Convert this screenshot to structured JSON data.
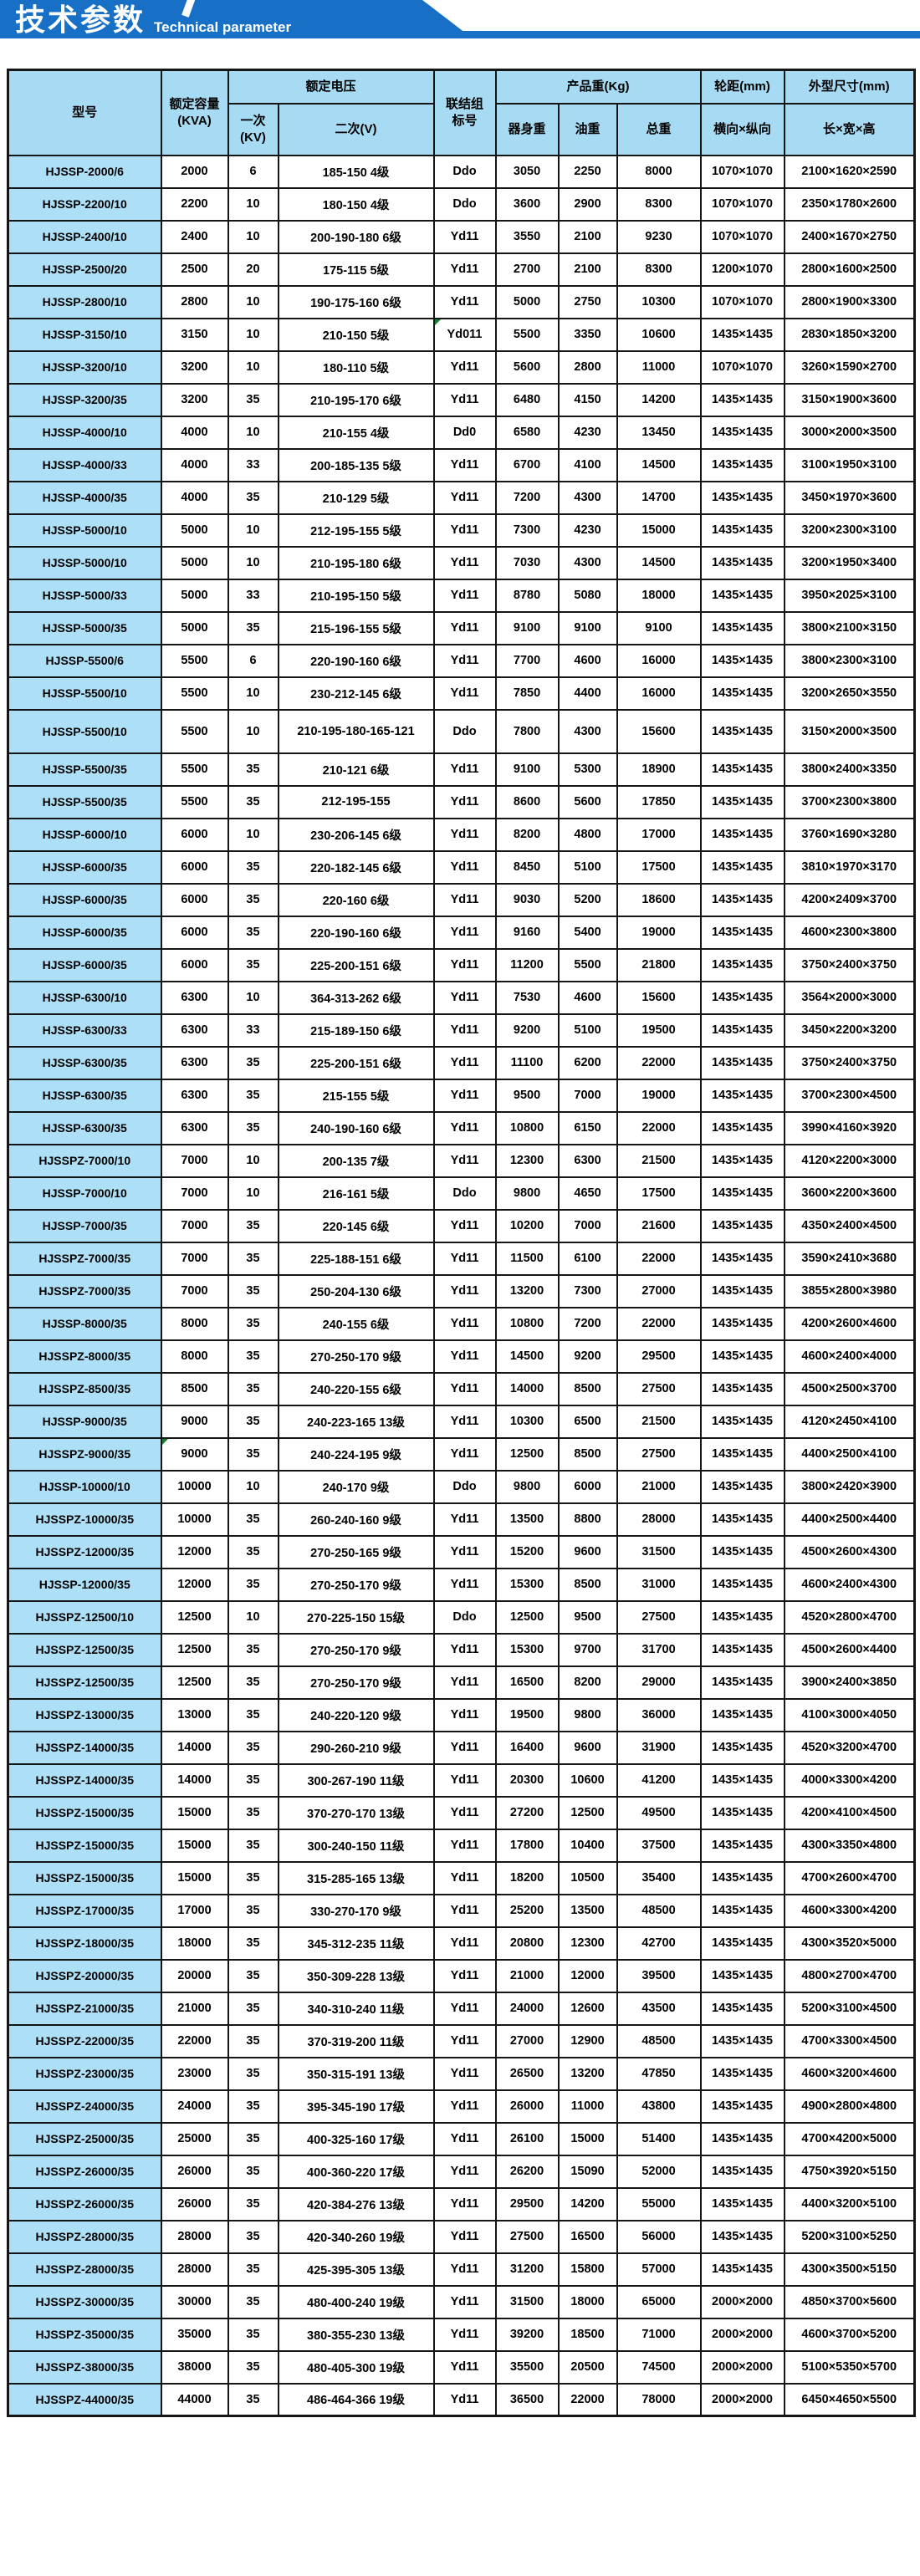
{
  "banner": {
    "title_zh": "技术参数",
    "title_en": "Technical parameter"
  },
  "colors": {
    "banner_blue": "#1770c5",
    "header_bg": "#a7dbf3",
    "model_bg": "#ade0f7",
    "border": "#151515",
    "corner_green": "#1e7d32"
  },
  "table": {
    "headers": {
      "model": "型号",
      "capacity_line1": "额定容量",
      "capacity_line2": "(KVA)",
      "voltage_group": "额定电压",
      "primary_line1": "一次",
      "primary_line2": "(KV)",
      "secondary": "二次(V)",
      "connection_line1": "联结组",
      "connection_line2": "标号",
      "weight_group": "产品重(Kg)",
      "body_weight": "器身重",
      "oil_weight": "油重",
      "total_weight": "总重",
      "wheelbase_group": "轮距(mm)",
      "wheelbase": "横向×纵向",
      "dimensions_group": "外型尺寸(mm)",
      "dimensions": "长×宽×高"
    },
    "col_keys": [
      "model",
      "capacity",
      "primary",
      "secondary",
      "connection",
      "body-weight",
      "oil-weight",
      "total-weight",
      "wheelbase",
      "dimensions"
    ],
    "corner_marks": [
      {
        "row": 6,
        "col": 4
      },
      {
        "row": 40,
        "col": 1
      }
    ],
    "rows": [
      [
        "HJSSP-2000/6",
        "2000",
        "6",
        "185-150 4级",
        "Ddo",
        "3050",
        "2250",
        "8000",
        "1070×1070",
        "2100×1620×2590"
      ],
      [
        "HJSSP-2200/10",
        "2200",
        "10",
        "180-150 4级",
        "Ddo",
        "3600",
        "2900",
        "8300",
        "1070×1070",
        "2350×1780×2600"
      ],
      [
        "HJSSP-2400/10",
        "2400",
        "10",
        "200-190-180 6级",
        "Yd11",
        "3550",
        "2100",
        "9230",
        "1070×1070",
        "2400×1670×2750"
      ],
      [
        "HJSSP-2500/20",
        "2500",
        "20",
        "175-115 5级",
        "Yd11",
        "2700",
        "2100",
        "8300",
        "1200×1070",
        "2800×1600×2500"
      ],
      [
        "HJSSP-2800/10",
        "2800",
        "10",
        "190-175-160 6级",
        "Yd11",
        "5000",
        "2750",
        "10300",
        "1070×1070",
        "2800×1900×3300"
      ],
      [
        "HJSSP-3150/10",
        "3150",
        "10",
        "210-150 5级",
        "Yd011",
        "5500",
        "3350",
        "10600",
        "1435×1435",
        "2830×1850×3200"
      ],
      [
        "HJSSP-3200/10",
        "3200",
        "10",
        "180-110 5级",
        "Yd11",
        "5600",
        "2800",
        "11000",
        "1070×1070",
        "3260×1590×2700"
      ],
      [
        "HJSSP-3200/35",
        "3200",
        "35",
        "210-195-170 6级",
        "Yd11",
        "6480",
        "4150",
        "14200",
        "1435×1435",
        "3150×1900×3600"
      ],
      [
        "HJSSP-4000/10",
        "4000",
        "10",
        "210-155 4级",
        "Dd0",
        "6580",
        "4230",
        "13450",
        "1435×1435",
        "3000×2000×3500"
      ],
      [
        "HJSSP-4000/33",
        "4000",
        "33",
        "200-185-135 5级",
        "Yd11",
        "6700",
        "4100",
        "14500",
        "1435×1435",
        "3100×1950×3100"
      ],
      [
        "HJSSP-4000/35",
        "4000",
        "35",
        "210-129 5级",
        "Yd11",
        "7200",
        "4300",
        "14700",
        "1435×1435",
        "3450×1970×3600"
      ],
      [
        "HJSSP-5000/10",
        "5000",
        "10",
        "212-195-155 5级",
        "Yd11",
        "7300",
        "4230",
        "15000",
        "1435×1435",
        "3200×2300×3100"
      ],
      [
        "HJSSP-5000/10",
        "5000",
        "10",
        "210-195-180 6级",
        "Yd11",
        "7030",
        "4300",
        "14500",
        "1435×1435",
        "3200×1950×3400"
      ],
      [
        "HJSSP-5000/33",
        "5000",
        "33",
        "210-195-150 5级",
        "Yd11",
        "8780",
        "5080",
        "18000",
        "1435×1435",
        "3950×2025×3100"
      ],
      [
        "HJSSP-5000/35",
        "5000",
        "35",
        "215-196-155 5级",
        "Yd11",
        "9100",
        "9100",
        "9100",
        "1435×1435",
        "3800×2100×3150"
      ],
      [
        "HJSSP-5500/6",
        "5500",
        "6",
        "220-190-160 6级",
        "Yd11",
        "7700",
        "4600",
        "16000",
        "1435×1435",
        "3800×2300×3100"
      ],
      [
        "HJSSP-5500/10",
        "5500",
        "10",
        "230-212-145 6级",
        "Yd11",
        "7850",
        "4400",
        "16000",
        "1435×1435",
        "3200×2650×3550"
      ],
      [
        "HJSSP-5500/10",
        "5500",
        "10",
        "210-195-180-165-121",
        "Ddo",
        "7800",
        "4300",
        "15600",
        "1435×1435",
        "3150×2000×3500"
      ],
      [
        "HJSSP-5500/35",
        "5500",
        "35",
        "210-121 6级",
        "Yd11",
        "9100",
        "5300",
        "18900",
        "1435×1435",
        "3800×2400×3350"
      ],
      [
        "HJSSP-5500/35",
        "5500",
        "35",
        "212-195-155",
        "Yd11",
        "8600",
        "5600",
        "17850",
        "1435×1435",
        "3700×2300×3800"
      ],
      [
        "HJSSP-6000/10",
        "6000",
        "10",
        "230-206-145 6级",
        "Yd11",
        "8200",
        "4800",
        "17000",
        "1435×1435",
        "3760×1690×3280"
      ],
      [
        "HJSSP-6000/35",
        "6000",
        "35",
        "220-182-145 6级",
        "Yd11",
        "8450",
        "5100",
        "17500",
        "1435×1435",
        "3810×1970×3170"
      ],
      [
        "HJSSP-6000/35",
        "6000",
        "35",
        "220-160 6级",
        "Yd11",
        "9030",
        "5200",
        "18600",
        "1435×1435",
        "4200×2409×3700"
      ],
      [
        "HJSSP-6000/35",
        "6000",
        "35",
        "220-190-160 6级",
        "Yd11",
        "9160",
        "5400",
        "19000",
        "1435×1435",
        "4600×2300×3800"
      ],
      [
        "HJSSP-6000/35",
        "6000",
        "35",
        "225-200-151 6级",
        "Yd11",
        "11200",
        "5500",
        "21800",
        "1435×1435",
        "3750×2400×3750"
      ],
      [
        "HJSSP-6300/10",
        "6300",
        "10",
        "364-313-262 6级",
        "Yd11",
        "7530",
        "4600",
        "15600",
        "1435×1435",
        "3564×2000×3000"
      ],
      [
        "HJSSP-6300/33",
        "6300",
        "33",
        "215-189-150 6级",
        "Yd11",
        "9200",
        "5100",
        "19500",
        "1435×1435",
        "3450×2200×3200"
      ],
      [
        "HJSSP-6300/35",
        "6300",
        "35",
        "225-200-151 6级",
        "Yd11",
        "11100",
        "6200",
        "22000",
        "1435×1435",
        "3750×2400×3750"
      ],
      [
        "HJSSP-6300/35",
        "6300",
        "35",
        "215-155 5级",
        "Yd11",
        "9500",
        "7000",
        "19000",
        "1435×1435",
        "3700×2300×4500"
      ],
      [
        "HJSSP-6300/35",
        "6300",
        "35",
        "240-190-160 6级",
        "Yd11",
        "10800",
        "6150",
        "22000",
        "1435×1435",
        "3990×4160×3920"
      ],
      [
        "HJSSPZ-7000/10",
        "7000",
        "10",
        "200-135 7级",
        "Yd11",
        "12300",
        "6300",
        "21500",
        "1435×1435",
        "4120×2200×3000"
      ],
      [
        "HJSSP-7000/10",
        "7000",
        "10",
        "216-161 5级",
        "Ddo",
        "9800",
        "4650",
        "17500",
        "1435×1435",
        "3600×2200×3600"
      ],
      [
        "HJSSP-7000/35",
        "7000",
        "35",
        "220-145 6级",
        "Yd11",
        "10200",
        "7000",
        "21600",
        "1435×1435",
        "4350×2400×4500"
      ],
      [
        "HJSSPZ-7000/35",
        "7000",
        "35",
        "225-188-151 6级",
        "Yd11",
        "11500",
        "6100",
        "22000",
        "1435×1435",
        "3590×2410×3680"
      ],
      [
        "HJSSPZ-7000/35",
        "7000",
        "35",
        "250-204-130 6级",
        "Yd11",
        "13200",
        "7300",
        "27000",
        "1435×1435",
        "3855×2800×3980"
      ],
      [
        "HJSSP-8000/35",
        "8000",
        "35",
        "240-155 6级",
        "Yd11",
        "10800",
        "7200",
        "22000",
        "1435×1435",
        "4200×2600×4600"
      ],
      [
        "HJSSPZ-8000/35",
        "8000",
        "35",
        "270-250-170 9级",
        "Yd11",
        "14500",
        "9200",
        "29500",
        "1435×1435",
        "4600×2400×4000"
      ],
      [
        "HJSSPZ-8500/35",
        "8500",
        "35",
        "240-220-155 6级",
        "Yd11",
        "14000",
        "8500",
        "27500",
        "1435×1435",
        "4500×2500×3700"
      ],
      [
        "HJSSP-9000/35",
        "9000",
        "35",
        "240-223-165 13级",
        "Yd11",
        "10300",
        "6500",
        "21500",
        "1435×1435",
        "4120×2450×4100"
      ],
      [
        "HJSSPZ-9000/35",
        "9000",
        "35",
        "240-224-195 9级",
        "Yd11",
        "12500",
        "8500",
        "27500",
        "1435×1435",
        "4400×2500×4100"
      ],
      [
        "HJSSP-10000/10",
        "10000",
        "10",
        "240-170 9级",
        "Ddo",
        "9800",
        "6000",
        "21000",
        "1435×1435",
        "3800×2420×3900"
      ],
      [
        "HJSSPZ-10000/35",
        "10000",
        "35",
        "260-240-160 9级",
        "Yd11",
        "13500",
        "8800",
        "28000",
        "1435×1435",
        "4400×2500×4400"
      ],
      [
        "HJSSPZ-12000/35",
        "12000",
        "35",
        "270-250-165 9级",
        "Yd11",
        "15200",
        "9600",
        "31500",
        "1435×1435",
        "4500×2600×4300"
      ],
      [
        "HJSSP-12000/35",
        "12000",
        "35",
        "270-250-170 9级",
        "Yd11",
        "15300",
        "8500",
        "31000",
        "1435×1435",
        "4600×2400×4300"
      ],
      [
        "HJSSPZ-12500/10",
        "12500",
        "10",
        "270-225-150 15级",
        "Ddo",
        "12500",
        "9500",
        "27500",
        "1435×1435",
        "4520×2800×4700"
      ],
      [
        "HJSSPZ-12500/35",
        "12500",
        "35",
        "270-250-170 9级",
        "Yd11",
        "15300",
        "9700",
        "31700",
        "1435×1435",
        "4500×2600×4400"
      ],
      [
        "HJSSPZ-12500/35",
        "12500",
        "35",
        "270-250-170 9级",
        "Yd11",
        "16500",
        "8200",
        "29000",
        "1435×1435",
        "3900×2400×3850"
      ],
      [
        "HJSSPZ-13000/35",
        "13000",
        "35",
        "240-220-120 9级",
        "Yd11",
        "19500",
        "9800",
        "36000",
        "1435×1435",
        "4100×3000×4050"
      ],
      [
        "HJSSPZ-14000/35",
        "14000",
        "35",
        "290-260-210 9级",
        "Yd11",
        "16400",
        "9600",
        "31900",
        "1435×1435",
        "4520×3200×4700"
      ],
      [
        "HJSSPZ-14000/35",
        "14000",
        "35",
        "300-267-190 11级",
        "Yd11",
        "20300",
        "10600",
        "41200",
        "1435×1435",
        "4000×3300×4200"
      ],
      [
        "HJSSPZ-15000/35",
        "15000",
        "35",
        "370-270-170 13级",
        "Yd11",
        "27200",
        "12500",
        "49500",
        "1435×1435",
        "4200×4100×4500"
      ],
      [
        "HJSSPZ-15000/35",
        "15000",
        "35",
        "300-240-150 11级",
        "Yd11",
        "17800",
        "10400",
        "37500",
        "1435×1435",
        "4300×3350×4800"
      ],
      [
        "HJSSPZ-15000/35",
        "15000",
        "35",
        "315-285-165 13级",
        "Yd11",
        "18200",
        "10500",
        "35400",
        "1435×1435",
        "4700×2600×4700"
      ],
      [
        "HJSSPZ-17000/35",
        "17000",
        "35",
        "330-270-170 9级",
        "Yd11",
        "25200",
        "13500",
        "48500",
        "1435×1435",
        "4600×3300×4200"
      ],
      [
        "HJSSPZ-18000/35",
        "18000",
        "35",
        "345-312-235 11级",
        "Yd11",
        "20800",
        "12300",
        "42700",
        "1435×1435",
        "4300×3520×5000"
      ],
      [
        "HJSSPZ-20000/35",
        "20000",
        "35",
        "350-309-228 13级",
        "Yd11",
        "21000",
        "12000",
        "39500",
        "1435×1435",
        "4800×2700×4700"
      ],
      [
        "HJSSPZ-21000/35",
        "21000",
        "35",
        "340-310-240 11级",
        "Yd11",
        "24000",
        "12600",
        "43500",
        "1435×1435",
        "5200×3100×4500"
      ],
      [
        "HJSSPZ-22000/35",
        "22000",
        "35",
        "370-319-200 11级",
        "Yd11",
        "27000",
        "12900",
        "48500",
        "1435×1435",
        "4700×3300×4500"
      ],
      [
        "HJSSPZ-23000/35",
        "23000",
        "35",
        "350-315-191 13级",
        "Yd11",
        "26500",
        "13200",
        "47850",
        "1435×1435",
        "4600×3200×4600"
      ],
      [
        "HJSSPZ-24000/35",
        "24000",
        "35",
        "395-345-190 17级",
        "Yd11",
        "26000",
        "11000",
        "43800",
        "1435×1435",
        "4900×2800×4800"
      ],
      [
        "HJSSPZ-25000/35",
        "25000",
        "35",
        "400-325-160 17级",
        "Yd11",
        "26100",
        "15000",
        "51400",
        "1435×1435",
        "4700×4200×5000"
      ],
      [
        "HJSSPZ-26000/35",
        "26000",
        "35",
        "400-360-220 17级",
        "Yd11",
        "26200",
        "15090",
        "52000",
        "1435×1435",
        "4750×3920×5150"
      ],
      [
        "HJSSPZ-26000/35",
        "26000",
        "35",
        "420-384-276 13级",
        "Yd11",
        "29500",
        "14200",
        "55000",
        "1435×1435",
        "4400×3200×5100"
      ],
      [
        "HJSSPZ-28000/35",
        "28000",
        "35",
        "420-340-260 19级",
        "Yd11",
        "27500",
        "16500",
        "56000",
        "1435×1435",
        "5200×3100×5250"
      ],
      [
        "HJSSPZ-28000/35",
        "28000",
        "35",
        "425-395-305 13级",
        "Yd11",
        "31200",
        "15800",
        "57000",
        "1435×1435",
        "4300×3500×5150"
      ],
      [
        "HJSSPZ-30000/35",
        "30000",
        "35",
        "480-400-240 19级",
        "Yd11",
        "31500",
        "18000",
        "65000",
        "2000×2000",
        "4850×3700×5600"
      ],
      [
        "HJSSPZ-35000/35",
        "35000",
        "35",
        "380-355-230 13级",
        "Yd11",
        "39200",
        "18500",
        "71000",
        "2000×2000",
        "4600×3700×5200"
      ],
      [
        "HJSSPZ-38000/35",
        "38000",
        "35",
        "480-405-300 19级",
        "Yd11",
        "35500",
        "20500",
        "74500",
        "2000×2000",
        "5100×5350×5700"
      ],
      [
        "HJSSPZ-44000/35",
        "44000",
        "35",
        "486-464-366 19级",
        "Yd11",
        "36500",
        "22000",
        "78000",
        "2000×2000",
        "6450×4650×5500"
      ]
    ]
  }
}
